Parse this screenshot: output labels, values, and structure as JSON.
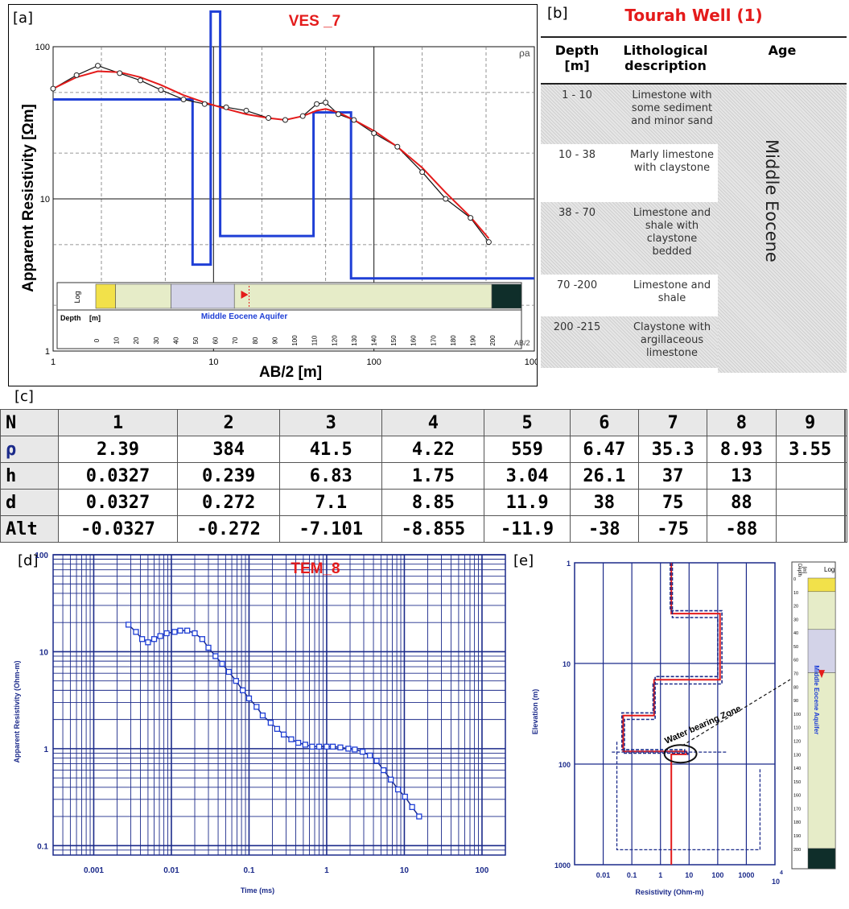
{
  "panel_labels": {
    "a": "[a]",
    "b": "[b]",
    "c": "[c]",
    "d": "[d]",
    "e": "[e]"
  },
  "colors": {
    "red": "#e41b1b",
    "blue": "#1f3fd6",
    "navy": "#1b2a8a",
    "black": "#111111"
  },
  "chart_data": [
    {
      "id": "a",
      "type": "line",
      "title": "VES _7",
      "xlabel": "AB/2 [m]",
      "ylabel": "Apparent Resistivity [Ωm]",
      "xscale": "log",
      "yscale": "log",
      "xlim": [
        1,
        1000
      ],
      "ylim": [
        1,
        100
      ],
      "x_ticks": [
        "1",
        "10",
        "100",
        "1000"
      ],
      "y_ticks": [
        "1",
        "10",
        "100"
      ],
      "corner_label": "ρa",
      "series": [
        {
          "kind": "measured",
          "x": [
            1,
            1.4,
            1.9,
            2.6,
            3.5,
            4.7,
            6.5,
            8.8,
            12,
            16,
            22,
            28,
            36,
            44,
            50,
            60,
            75,
            100,
            140,
            200,
            280,
            400,
            520
          ],
          "y": [
            53,
            65,
            75,
            67,
            60,
            52,
            45,
            42,
            40,
            38,
            34,
            33,
            35,
            42,
            43,
            36,
            33,
            27,
            22,
            15,
            10,
            7.5,
            5.2
          ]
        },
        {
          "kind": "model-curve",
          "x": [
            1,
            1.4,
            1.9,
            2.6,
            3.5,
            4.7,
            6.5,
            8.8,
            12,
            16,
            22,
            28,
            36,
            44,
            50,
            60,
            75,
            100,
            140,
            200,
            280,
            400,
            520
          ],
          "y": [
            53,
            63,
            69,
            68,
            63,
            56,
            48,
            43,
            39,
            36,
            34,
            33,
            35,
            38,
            39,
            37,
            33,
            28,
            22,
            16,
            11,
            7.6,
            5.5
          ]
        },
        {
          "kind": "layer-model",
          "x": [
            1,
            7.4,
            7.4,
            9.6,
            9.6,
            11,
            11,
            42,
            42,
            72,
            72,
            1000
          ],
          "y": [
            45,
            45,
            3.7,
            3.7,
            170,
            170,
            5.7,
            5.7,
            37,
            37,
            3.0,
            3.0
          ]
        }
      ],
      "log_strip": {
        "log_label": "Log",
        "depth_label": "Depth",
        "unit_label": "[m]",
        "aquifer_label": "Middle Eocene Aquifer",
        "depth_ticks": [
          "0",
          "10",
          "20",
          "30",
          "40",
          "50",
          "60",
          "70",
          "80",
          "90",
          "100",
          "110",
          "120",
          "130",
          "140",
          "150",
          "160",
          "170",
          "180",
          "190",
          "200"
        ],
        "axis_label": "AB/2",
        "units": [
          {
            "from": 0,
            "to": 10,
            "color": "#f2e14a"
          },
          {
            "from": 10,
            "to": 38,
            "color": "#e6ecc8"
          },
          {
            "from": 38,
            "to": 70,
            "color": "#d3d3e8"
          },
          {
            "from": 70,
            "to": 200,
            "color": "#e6ecc8"
          },
          {
            "from": 200,
            "to": 215,
            "color": "#0f2e2a"
          }
        ],
        "water_marker_depth": 75
      }
    },
    {
      "id": "d",
      "type": "scatter",
      "title": "TEM_8",
      "xlabel": "Time (ms)",
      "ylabel": "Apparent Resistivity (Ohm-m)",
      "xscale": "log",
      "yscale": "log",
      "xlim": [
        0.0003,
        200
      ],
      "ylim": [
        0.08,
        100
      ],
      "x_ticks": [
        "0.001",
        "0.01",
        "0.1",
        "1",
        "10",
        "100"
      ],
      "y_ticks": [
        "0.1",
        "1",
        "10",
        "100"
      ],
      "series": [
        {
          "kind": "measured",
          "x": [
            0.0028,
            0.0035,
            0.0042,
            0.005,
            0.006,
            0.0072,
            0.0087,
            0.011,
            0.013,
            0.016,
            0.02,
            0.025,
            0.03,
            0.037,
            0.045,
            0.055,
            0.068,
            0.083,
            0.1,
            0.125,
            0.15,
            0.19,
            0.23,
            0.28,
            0.35,
            0.43,
            0.53,
            0.65,
            0.8,
            1.0,
            1.2,
            1.5,
            1.9,
            2.3,
            2.9,
            3.6,
            4.4,
            5.4,
            6.7,
            8.3,
            10.2,
            12.6,
            15.5
          ],
          "y": [
            19,
            16,
            13.5,
            12.5,
            13.5,
            14.5,
            15.5,
            16,
            16.5,
            16.5,
            15.5,
            13.5,
            11,
            9,
            7.5,
            6.2,
            5.0,
            4.0,
            3.3,
            2.7,
            2.2,
            1.85,
            1.6,
            1.4,
            1.25,
            1.15,
            1.1,
            1.05,
            1.05,
            1.05,
            1.05,
            1.03,
            1.0,
            0.98,
            0.93,
            0.85,
            0.75,
            0.6,
            0.48,
            0.38,
            0.32,
            0.25,
            0.2
          ]
        }
      ]
    },
    {
      "id": "e",
      "type": "line",
      "xlabel": "Resistivity (Ohm-m)",
      "ylabel": "Elevation (m)",
      "xscale": "log",
      "yscale": "log",
      "xlim": [
        0.001,
        10000
      ],
      "ylim": [
        1,
        1000
      ],
      "x_ticks": [
        "0.01",
        "0.1",
        "1",
        "10",
        "100",
        "1000"
      ],
      "x_extra": "10",
      "x_exp": "4",
      "y_ticks": [
        "1",
        "10",
        "100",
        "1000"
      ],
      "annotation": "Water bearing Zone",
      "series": [
        {
          "kind": "model",
          "x": [
            2.4,
            2.4,
            120,
            120,
            0.6,
            0.6,
            0.05,
            0.05,
            8,
            8,
            2.4,
            2.4
          ],
          "y": [
            1,
            3.2,
            3.2,
            14.5,
            14.5,
            33,
            33,
            75,
            75,
            80,
            80,
            1000
          ]
        },
        {
          "kind": "equivalence",
          "x": [
            2.6,
            2.6,
            100,
            100,
            0.65,
            0.65,
            0.055,
            0.055,
            9,
            9
          ],
          "y": [
            1,
            3.5,
            3.5,
            13.5,
            13.5,
            36,
            36,
            78,
            78,
            82
          ]
        },
        {
          "kind": "equivalence",
          "x": [
            2.2,
            2.2,
            140,
            140,
            0.55,
            0.55,
            0.045,
            0.045,
            7,
            7
          ],
          "y": [
            1,
            3.0,
            3.0,
            16,
            16,
            31,
            31,
            72,
            72,
            77
          ]
        }
      ],
      "log_strip": {
        "log_label": "Log",
        "depth_label": "Depth",
        "unit_label": "[m]",
        "aquifer_label": "Middle Eocene Aquifer",
        "depth_ticks": [
          "0",
          "10",
          "20",
          "30",
          "40",
          "50",
          "60",
          "70",
          "80",
          "90",
          "100",
          "110",
          "120",
          "130",
          "140",
          "150",
          "160",
          "170",
          "180",
          "190",
          "200"
        ]
      }
    }
  ],
  "well": {
    "title": "Tourah Well (1)",
    "headers": {
      "depth": "Depth\n[m]",
      "litho": "Lithological\ndescription",
      "age": "Age"
    },
    "age_text": "Middle Eocene",
    "rows": [
      {
        "depth": "1 - 10",
        "desc": "Limestone with some sediment and minor sand",
        "shaded": true
      },
      {
        "depth": "10 - 38",
        "desc": "Marly limestone with claystone",
        "shaded": false
      },
      {
        "depth": "38 - 70",
        "desc": "Limestone and shale with claystone bedded",
        "shaded": true
      },
      {
        "depth": "70 -200",
        "desc": "Limestone and shale",
        "shaded": false
      },
      {
        "depth": "200 -215",
        "desc": "Claystone with argillaceous limestone",
        "shaded": true
      }
    ]
  },
  "params_table": {
    "columns": [
      "N",
      "1",
      "2",
      "3",
      "4",
      "5",
      "6",
      "7",
      "8",
      "9",
      "",
      ""
    ],
    "rows": [
      [
        "ρ",
        "2.39",
        "384",
        "41.5",
        "4.22",
        "559",
        "6.47",
        "35.3",
        "8.93",
        "3.55",
        "",
        ""
      ],
      [
        "h",
        "0.0327",
        "0.239",
        "6.83",
        "1.75",
        "3.04",
        "26.1",
        "37",
        "13",
        "",
        "",
        ""
      ],
      [
        "d",
        "0.0327",
        "0.272",
        "7.1",
        "8.85",
        "11.9",
        "38",
        "75",
        "88",
        "",
        "",
        ""
      ],
      [
        "Alt",
        "-0.0327",
        "-0.272",
        "-7.101",
        "-8.855",
        "-11.9",
        "-38",
        "-75",
        "-88",
        "",
        "",
        ""
      ]
    ]
  }
}
